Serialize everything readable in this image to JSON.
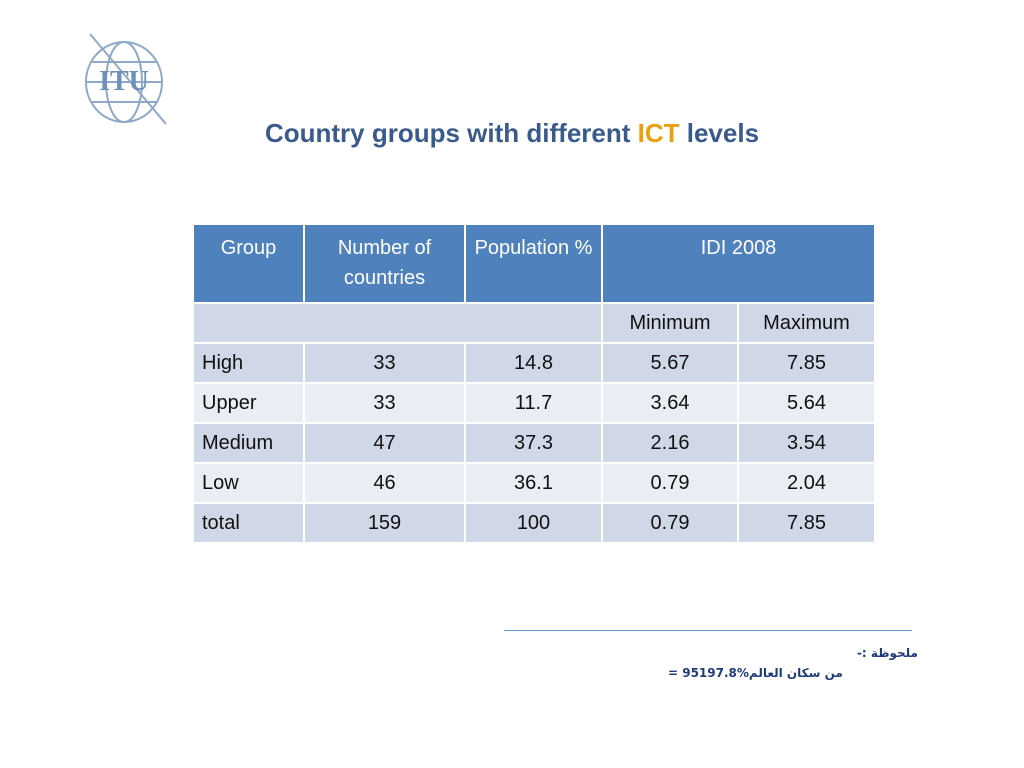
{
  "logo": {
    "text": "ITU"
  },
  "title": {
    "prefix": "Country groups  with different ",
    "accent": "ICT",
    "suffix": " levels"
  },
  "table": {
    "headers": [
      "Group",
      "Number of countries",
      "Population %",
      "IDI 2008"
    ],
    "subheaders": [
      "Minimum",
      "Maximum"
    ],
    "rows": [
      [
        "High",
        "33",
        "14.8",
        "5.67",
        "7.85"
      ],
      [
        "Upper",
        "33",
        "11.7",
        "3.64",
        "5.64"
      ],
      [
        "Medium",
        "47",
        "37.3",
        "2.16",
        "3.54"
      ],
      [
        "Low",
        "46",
        "36.1",
        "0.79",
        "2.04"
      ],
      [
        "total",
        "159",
        "100",
        "0.79",
        "7.85"
      ]
    ]
  },
  "note": {
    "label": "ملحوظة :-",
    "line_ltr": "159 = ",
    "line_pct": "%97.8",
    "line_ar": " من سكان العالم"
  },
  "colors": {
    "header": "#4f81bd",
    "band": "#d0d8e8",
    "light": "#e9edf4",
    "title": "#3a5a8c",
    "accent": "#e8a010"
  }
}
